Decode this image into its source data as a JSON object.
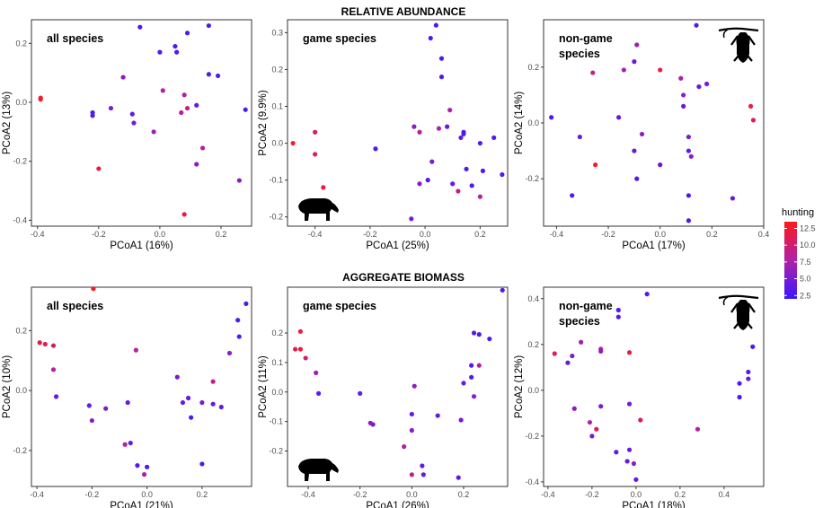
{
  "section_titles": [
    "RELATIVE ABUNDANCE",
    "AGGREGATE BIOMASS"
  ],
  "legend": {
    "title": "hunting",
    "ticks": [
      "12.5",
      "10.0",
      "7.5",
      "5.0",
      "2.5"
    ],
    "tick_values": [
      12.5,
      10.0,
      7.5,
      5.0,
      2.5
    ],
    "range": [
      2.0,
      13.5
    ],
    "colors": {
      "low": "#3b17ff",
      "mid": "#b020a8",
      "high": "#ff1a1a"
    }
  },
  "icons": [
    "tapir-silhouette-icon",
    "monkey-silhouette-icon"
  ],
  "chart_data": [
    {
      "type": "scatter",
      "label": "all species",
      "xlabel": "PCoA1 (16%)",
      "ylabel": "PCoA2 (13%)",
      "xlim": [
        -0.42,
        0.3
      ],
      "ylim": [
        -0.42,
        0.28
      ],
      "xticks": [
        -0.4,
        -0.2,
        0.0,
        0.2
      ],
      "xtick_labels": [
        "-0.4",
        "-0.2",
        "0.0",
        "0.2"
      ],
      "yticks": [
        -0.4,
        -0.2,
        0.0,
        0.2
      ],
      "ytick_labels": [
        "-0.4",
        "-0.2",
        "0.0",
        "0.2"
      ],
      "points": [
        [
          -0.39,
          0.01,
          12
        ],
        [
          -0.39,
          0.015,
          13
        ],
        [
          -0.2,
          -0.225,
          12
        ],
        [
          -0.22,
          -0.035,
          3
        ],
        [
          -0.22,
          -0.045,
          3
        ],
        [
          -0.16,
          -0.02,
          5
        ],
        [
          -0.12,
          0.085,
          6
        ],
        [
          -0.09,
          -0.04,
          4
        ],
        [
          -0.085,
          -0.07,
          5
        ],
        [
          -0.065,
          0.255,
          3
        ],
        [
          -0.02,
          -0.1,
          7
        ],
        [
          0.0,
          0.17,
          3
        ],
        [
          0.01,
          0.04,
          8
        ],
        [
          0.05,
          0.19,
          3
        ],
        [
          0.055,
          0.17,
          3
        ],
        [
          0.07,
          -0.035,
          8
        ],
        [
          0.08,
          0.025,
          8
        ],
        [
          0.09,
          -0.02,
          9
        ],
        [
          0.08,
          -0.38,
          12
        ],
        [
          0.09,
          0.235,
          3
        ],
        [
          0.12,
          -0.01,
          4
        ],
        [
          0.12,
          -0.21,
          6
        ],
        [
          0.14,
          -0.155,
          8
        ],
        [
          0.16,
          0.26,
          3
        ],
        [
          0.16,
          0.095,
          3
        ],
        [
          0.19,
          0.09,
          3
        ],
        [
          0.26,
          -0.265,
          6
        ],
        [
          0.28,
          -0.025,
          3
        ]
      ]
    },
    {
      "type": "scatter",
      "label": "game species",
      "xlabel": "PCoA1 (25%)",
      "ylabel": "PCoA2 (9.9%)",
      "xlim": [
        -0.5,
        0.3
      ],
      "ylim": [
        -0.225,
        0.335
      ],
      "xticks": [
        -0.4,
        -0.2,
        0.0,
        0.2
      ],
      "xtick_labels": [
        "-0.4",
        "-0.2",
        "0.0",
        "0.2"
      ],
      "yticks": [
        -0.2,
        -0.1,
        0.0,
        0.1,
        0.2,
        0.3
      ],
      "ytick_labels": [
        "-0.2",
        "-0.1",
        "0.0",
        "0.1",
        "0.2",
        "0.3"
      ],
      "points": [
        [
          -0.48,
          0.0,
          13
        ],
        [
          -0.4,
          0.03,
          11
        ],
        [
          -0.4,
          -0.03,
          11
        ],
        [
          -0.37,
          -0.12,
          12
        ],
        [
          -0.18,
          -0.015,
          3
        ],
        [
          -0.05,
          -0.205,
          5
        ],
        [
          -0.04,
          0.045,
          6
        ],
        [
          -0.02,
          -0.11,
          6
        ],
        [
          -0.02,
          0.03,
          8
        ],
        [
          0.01,
          -0.1,
          3
        ],
        [
          0.02,
          0.285,
          3
        ],
        [
          0.025,
          -0.05,
          5
        ],
        [
          0.04,
          0.32,
          3
        ],
        [
          0.05,
          0.04,
          8
        ],
        [
          0.06,
          0.23,
          3
        ],
        [
          0.06,
          0.18,
          3
        ],
        [
          0.08,
          0.045,
          4
        ],
        [
          0.09,
          0.09,
          8
        ],
        [
          0.1,
          -0.11,
          4
        ],
        [
          0.12,
          -0.13,
          9
        ],
        [
          0.13,
          0.015,
          4
        ],
        [
          0.14,
          0.03,
          3
        ],
        [
          0.14,
          0.025,
          3
        ],
        [
          0.15,
          -0.07,
          3
        ],
        [
          0.17,
          -0.115,
          3
        ],
        [
          0.2,
          -0.145,
          8
        ],
        [
          0.2,
          0.0,
          3
        ],
        [
          0.21,
          -0.075,
          3
        ],
        [
          0.25,
          0.015,
          3
        ],
        [
          0.28,
          -0.085,
          3
        ]
      ]
    },
    {
      "type": "scatter",
      "label": "non-game species",
      "xlabel": "PCoA1 (17%)",
      "ylabel": "PCoA2 (14%)",
      "xlim": [
        -0.45,
        0.4
      ],
      "ylim": [
        -0.37,
        0.37
      ],
      "xticks": [
        -0.4,
        -0.2,
        0.0,
        0.2,
        0.4
      ],
      "xtick_labels": [
        "-0.4",
        "-0.2",
        "0.0",
        "0.2",
        "0.4"
      ],
      "yticks": [
        -0.2,
        0.0,
        0.2
      ],
      "ytick_labels": [
        "-0.2",
        "0.0",
        "0.2"
      ],
      "points": [
        [
          -0.42,
          0.02,
          3
        ],
        [
          -0.34,
          -0.26,
          3
        ],
        [
          -0.31,
          -0.05,
          4
        ],
        [
          -0.26,
          0.18,
          9
        ],
        [
          -0.25,
          -0.15,
          13
        ],
        [
          -0.16,
          0.02,
          4
        ],
        [
          -0.14,
          0.19,
          7
        ],
        [
          -0.1,
          0.22,
          4
        ],
        [
          -0.09,
          0.28,
          7
        ],
        [
          -0.1,
          -0.1,
          4
        ],
        [
          -0.09,
          -0.2,
          3
        ],
        [
          -0.07,
          -0.04,
          6
        ],
        [
          0.0,
          0.19,
          12
        ],
        [
          0.0,
          -0.15,
          4
        ],
        [
          0.08,
          0.16,
          8
        ],
        [
          0.09,
          0.1,
          6
        ],
        [
          0.09,
          0.06,
          4
        ],
        [
          0.11,
          -0.05,
          5
        ],
        [
          0.11,
          -0.1,
          4
        ],
        [
          0.12,
          -0.12,
          6
        ],
        [
          0.11,
          -0.26,
          3
        ],
        [
          0.11,
          -0.35,
          3
        ],
        [
          0.14,
          0.35,
          3
        ],
        [
          0.15,
          0.13,
          4
        ],
        [
          0.18,
          0.14,
          5
        ],
        [
          0.28,
          -0.27,
          4
        ],
        [
          0.35,
          0.06,
          12
        ],
        [
          0.36,
          0.01,
          11
        ]
      ]
    },
    {
      "type": "scatter",
      "label": "all species",
      "xlabel": "PCoA1 (21%)",
      "ylabel": "PCoA2 (10%)",
      "xlim": [
        -0.42,
        0.38
      ],
      "ylim": [
        -0.32,
        0.345
      ],
      "xticks": [
        -0.4,
        -0.2,
        0.0,
        0.2
      ],
      "xtick_labels": [
        "-0.4",
        "-0.2",
        "0.0",
        "0.2"
      ],
      "yticks": [
        -0.2,
        0.0,
        0.2
      ],
      "ytick_labels": [
        "-0.2",
        "0.0",
        "0.2"
      ],
      "points": [
        [
          -0.39,
          0.16,
          12
        ],
        [
          -0.37,
          0.155,
          11
        ],
        [
          -0.34,
          0.15,
          10
        ],
        [
          -0.34,
          0.07,
          8
        ],
        [
          -0.33,
          -0.02,
          4
        ],
        [
          -0.21,
          -0.05,
          4
        ],
        [
          -0.2,
          -0.1,
          6
        ],
        [
          -0.195,
          0.34,
          13
        ],
        [
          -0.15,
          -0.06,
          5
        ],
        [
          -0.08,
          -0.18,
          8
        ],
        [
          -0.06,
          -0.175,
          4
        ],
        [
          -0.07,
          -0.04,
          4
        ],
        [
          -0.04,
          0.135,
          8
        ],
        [
          -0.035,
          -0.25,
          3
        ],
        [
          -0.01,
          -0.28,
          8
        ],
        [
          0.0,
          -0.255,
          3
        ],
        [
          0.11,
          0.045,
          5
        ],
        [
          0.13,
          -0.04,
          4
        ],
        [
          0.15,
          -0.025,
          4
        ],
        [
          0.16,
          -0.09,
          3
        ],
        [
          0.2,
          -0.04,
          5
        ],
        [
          0.2,
          -0.245,
          3
        ],
        [
          0.24,
          0.03,
          9
        ],
        [
          0.24,
          -0.045,
          4
        ],
        [
          0.27,
          -0.055,
          4
        ],
        [
          0.3,
          0.125,
          6
        ],
        [
          0.33,
          0.235,
          3
        ],
        [
          0.335,
          0.18,
          3
        ],
        [
          0.36,
          0.29,
          3
        ]
      ]
    },
    {
      "type": "scatter",
      "label": "game species",
      "xlabel": "PCoA1 (26%)",
      "ylabel": "PCoA2 (11%)",
      "xlim": [
        -0.48,
        0.37
      ],
      "ylim": [
        -0.32,
        0.355
      ],
      "xticks": [
        -0.4,
        -0.2,
        0.0,
        0.2
      ],
      "xtick_labels": [
        "-0.4",
        "-0.2",
        "0.0",
        "0.2"
      ],
      "yticks": [
        -0.2,
        -0.1,
        0.0,
        0.1,
        0.2
      ],
      "ytick_labels": [
        "-0.2",
        "-0.1",
        "0.0",
        "0.1",
        "0.2"
      ],
      "points": [
        [
          -0.45,
          0.145,
          11
        ],
        [
          -0.43,
          0.205,
          12
        ],
        [
          -0.43,
          0.145,
          12
        ],
        [
          -0.41,
          0.115,
          10
        ],
        [
          -0.37,
          0.065,
          7
        ],
        [
          -0.36,
          -0.005,
          4
        ],
        [
          -0.2,
          -0.005,
          4
        ],
        [
          -0.16,
          -0.105,
          6
        ],
        [
          -0.15,
          -0.11,
          5
        ],
        [
          -0.03,
          -0.185,
          8
        ],
        [
          0.0,
          -0.28,
          9
        ],
        [
          0.0,
          -0.075,
          4
        ],
        [
          0.0,
          -0.13,
          6
        ],
        [
          0.01,
          0.02,
          6
        ],
        [
          0.04,
          -0.25,
          4
        ],
        [
          0.045,
          -0.28,
          4
        ],
        [
          0.1,
          -0.08,
          4
        ],
        [
          0.18,
          -0.29,
          4
        ],
        [
          0.19,
          -0.095,
          5
        ],
        [
          0.2,
          0.03,
          4
        ],
        [
          0.23,
          0.09,
          3
        ],
        [
          0.23,
          0.05,
          3
        ],
        [
          0.24,
          0.2,
          3
        ],
        [
          0.24,
          -0.015,
          6
        ],
        [
          0.26,
          0.195,
          3
        ],
        [
          0.26,
          0.09,
          8
        ],
        [
          0.3,
          0.18,
          3
        ],
        [
          0.35,
          0.345,
          3
        ]
      ]
    },
    {
      "type": "scatter",
      "label": "non-game species",
      "xlabel": "PCoA1 (18%)",
      "ylabel": "PCoA2 (12%)",
      "xlim": [
        -0.42,
        0.58
      ],
      "ylim": [
        -0.42,
        0.45
      ],
      "xticks": [
        -0.4,
        -0.2,
        0.0,
        0.2,
        0.4
      ],
      "xtick_labels": [
        "-0.4",
        "-0.2",
        "0.0",
        "0.2",
        "0.4"
      ],
      "yticks": [
        -0.4,
        -0.2,
        0.0,
        0.2,
        0.4
      ],
      "ytick_labels": [
        "-0.4",
        "-0.2",
        "0.0",
        "0.2",
        "0.4"
      ],
      "points": [
        [
          -0.37,
          0.16,
          11
        ],
        [
          -0.31,
          0.12,
          4
        ],
        [
          -0.29,
          0.15,
          5
        ],
        [
          -0.28,
          -0.08,
          6
        ],
        [
          -0.25,
          0.21,
          7
        ],
        [
          -0.21,
          -0.14,
          8
        ],
        [
          -0.2,
          -0.2,
          5
        ],
        [
          -0.18,
          -0.17,
          11
        ],
        [
          -0.16,
          0.18,
          8
        ],
        [
          -0.16,
          0.17,
          6
        ],
        [
          -0.16,
          -0.07,
          5
        ],
        [
          -0.09,
          -0.27,
          4
        ],
        [
          -0.08,
          0.35,
          3
        ],
        [
          -0.08,
          0.32,
          3
        ],
        [
          -0.04,
          -0.31,
          4
        ],
        [
          -0.03,
          0.165,
          12
        ],
        [
          -0.03,
          -0.06,
          5
        ],
        [
          -0.03,
          -0.26,
          4
        ],
        [
          -0.01,
          -0.32,
          6
        ],
        [
          0.0,
          -0.39,
          4
        ],
        [
          0.02,
          -0.13,
          11
        ],
        [
          0.05,
          0.42,
          3
        ],
        [
          0.28,
          -0.17,
          8
        ],
        [
          0.47,
          0.03,
          3
        ],
        [
          0.47,
          -0.03,
          3
        ],
        [
          0.51,
          0.05,
          4
        ],
        [
          0.51,
          0.08,
          3
        ],
        [
          0.53,
          0.19,
          3
        ]
      ]
    }
  ]
}
